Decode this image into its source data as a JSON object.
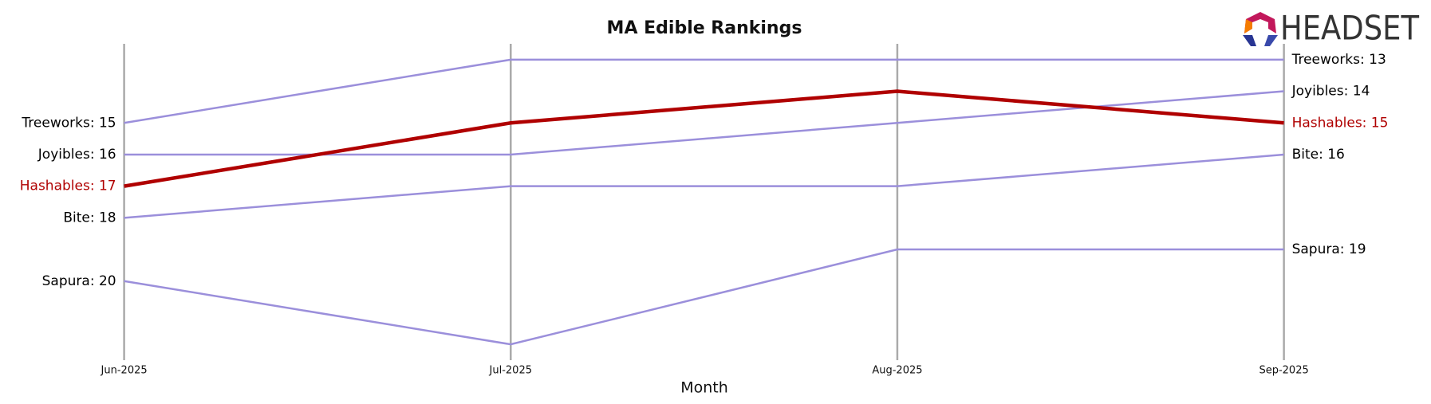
{
  "logo_text": "HEADSET",
  "chart_data": {
    "type": "bump",
    "title": "MA Edible Rankings",
    "x_label": "Month",
    "categories": [
      "Jun-2025",
      "Jul-2025",
      "Aug-2025",
      "Sep-2025"
    ],
    "ylim": [
      22.5,
      12.5
    ],
    "inverted": true,
    "grid": true,
    "series": [
      {
        "name": "Treeworks",
        "color": "#9b8fdb",
        "label_color": "#000000",
        "line_width": 2.5,
        "values": [
          15,
          13,
          13,
          13
        ],
        "value_labels": [
          "Treeworks: 15",
          null,
          null,
          "Treeworks: 13"
        ]
      },
      {
        "name": "Joyibles",
        "color": "#9b8fdb",
        "label_color": "#000000",
        "line_width": 2.5,
        "values": [
          16,
          16,
          15,
          14
        ],
        "value_labels": [
          "Joyibles: 16",
          null,
          null,
          "Joyibles: 14"
        ]
      },
      {
        "name": "Bite",
        "color": "#9b8fdb",
        "label_color": "#000000",
        "line_width": 2.5,
        "values": [
          18,
          17,
          17,
          16
        ],
        "value_labels": [
          "Bite: 18",
          null,
          null,
          "Bite: 16"
        ]
      },
      {
        "name": "Sapura",
        "color": "#9b8fdb",
        "label_color": "#000000",
        "line_width": 2.5,
        "values": [
          20,
          22,
          19,
          19
        ],
        "value_labels": [
          "Sapura: 20",
          null,
          null,
          "Sapura: 19"
        ]
      },
      {
        "name": "Hashables",
        "color": "#b00000",
        "label_color": "#b00000",
        "line_width": 4.5,
        "values": [
          17,
          15,
          14,
          15
        ],
        "value_labels": [
          "Hashables: 17",
          null,
          null,
          "Hashables: 15"
        ]
      }
    ]
  }
}
